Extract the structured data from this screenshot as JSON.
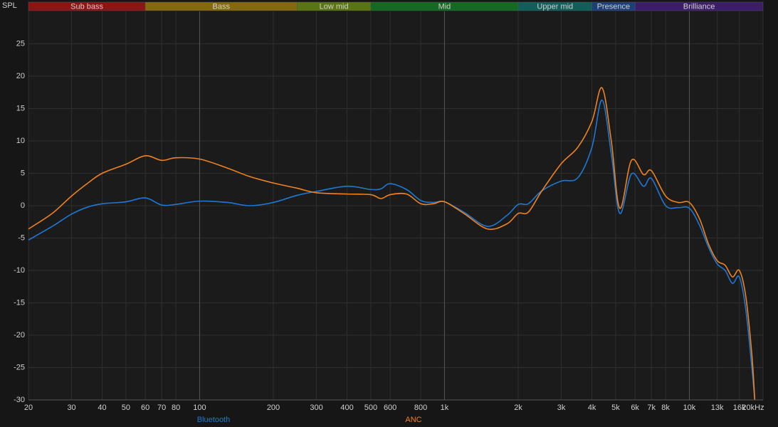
{
  "chart_data": {
    "type": "line",
    "ylabel": "SPL",
    "log_x": true,
    "grid": true,
    "xlim": [
      20,
      20000
    ],
    "ylim": [
      -30,
      30
    ],
    "yticks": [
      -30,
      -25,
      -20,
      -15,
      -10,
      -5,
      0,
      5,
      10,
      15,
      20,
      25
    ],
    "xticks": [
      20,
      30,
      40,
      50,
      60,
      70,
      80,
      100,
      200,
      300,
      400,
      500,
      600,
      800,
      {
        "value": 1000,
        "label": "1k"
      },
      {
        "value": 2000,
        "label": "2k"
      },
      {
        "value": 3000,
        "label": "3k"
      },
      {
        "value": 4000,
        "label": "4k"
      },
      {
        "value": 5000,
        "label": "5k"
      },
      {
        "value": 6000,
        "label": "6k"
      },
      {
        "value": 7000,
        "label": "7k"
      },
      {
        "value": 8000,
        "label": "8k"
      },
      {
        "value": 10000,
        "label": "10k"
      },
      {
        "value": 13000,
        "label": "13k"
      },
      {
        "value": 16000,
        "label": "16k"
      },
      {
        "value": 20000,
        "label": "20kHz"
      }
    ],
    "bands": [
      {
        "name": "Sub bass",
        "from": 20,
        "to": 60,
        "color": "#8b1414"
      },
      {
        "name": "Bass",
        "from": 60,
        "to": 250,
        "color": "#85690f"
      },
      {
        "name": "Low mid",
        "from": 250,
        "to": 500,
        "color": "#5a7612"
      },
      {
        "name": "Mid",
        "from": 500,
        "to": 2000,
        "color": "#146a22"
      },
      {
        "name": "Upper mid",
        "from": 2000,
        "to": 4000,
        "color": "#125e5a"
      },
      {
        "name": "Presence",
        "from": 4000,
        "to": 6000,
        "color": "#1c3f78"
      },
      {
        "name": "Brilliance",
        "from": 6000,
        "to": 20000,
        "color": "#3c1d6a"
      }
    ],
    "x": [
      20,
      25,
      30,
      35,
      40,
      50,
      60,
      70,
      80,
      100,
      130,
      160,
      200,
      250,
      300,
      400,
      500,
      550,
      600,
      700,
      800,
      900,
      1000,
      1200,
      1500,
      1800,
      2000,
      2200,
      2500,
      3000,
      3500,
      4000,
      4400,
      4800,
      5200,
      5800,
      6500,
      7000,
      8000,
      9000,
      10000,
      11000,
      12000,
      13000,
      14000,
      15000,
      16000,
      17000,
      18000,
      18500
    ],
    "series": [
      {
        "name": "Bluetooth",
        "color": "#1f77d4",
        "values": [
          -5.3,
          -3.2,
          -1.3,
          -0.2,
          0.3,
          0.6,
          1.2,
          0.1,
          0.2,
          0.7,
          0.5,
          0,
          0.5,
          1.6,
          2.2,
          3.0,
          2.5,
          2.6,
          3.4,
          2.5,
          0.8,
          0.5,
          0.6,
          -1,
          -3.2,
          -1.5,
          0.2,
          0.3,
          2.3,
          3.8,
          4.3,
          9,
          16.3,
          8,
          -1.2,
          4.9,
          3,
          4.2,
          0,
          -0.3,
          -0.4,
          -3,
          -6.5,
          -9,
          -10,
          -12,
          -11,
          -16,
          -25,
          -30
        ]
      },
      {
        "name": "ANC",
        "color": "#f0821e",
        "values": [
          -3.6,
          -1.2,
          1.5,
          3.5,
          5,
          6.4,
          7.7,
          7,
          7.4,
          7.2,
          5.8,
          4.5,
          3.5,
          2.7,
          2.0,
          1.8,
          1.7,
          1.1,
          1.7,
          1.8,
          0.3,
          0.3,
          0.6,
          -1.2,
          -3.6,
          -2.8,
          -1.2,
          -1.0,
          2.3,
          6.5,
          9,
          13,
          18.2,
          10,
          -0.4,
          7,
          4.8,
          5.4,
          1.5,
          0.5,
          0.5,
          -2,
          -6,
          -8.5,
          -9.2,
          -11,
          -10,
          -14,
          -23,
          -30
        ]
      }
    ]
  }
}
